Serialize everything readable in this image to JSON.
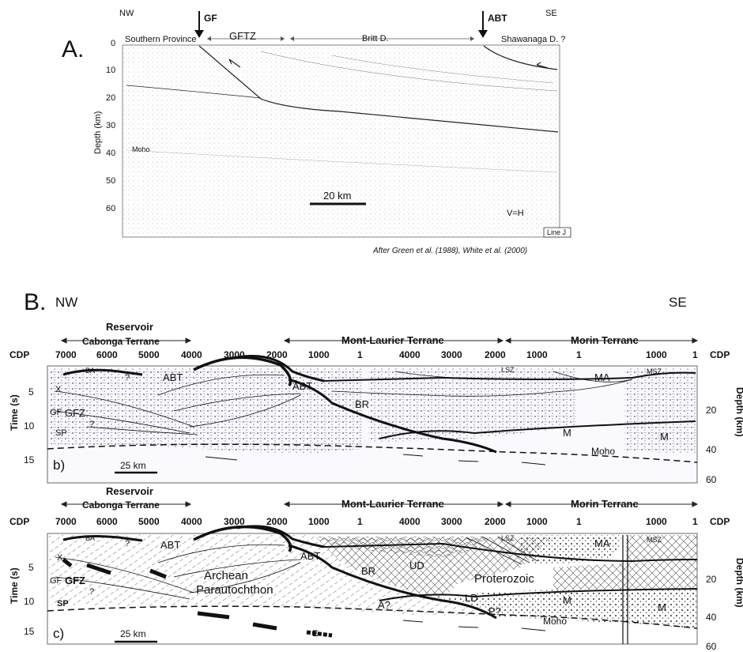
{
  "panel_a": {
    "letter": "A.",
    "nw": "NW",
    "se": "SE",
    "fault_left": "GF",
    "fault_right": "ABT",
    "province_left": "Southern Province",
    "zone": "GFTZ",
    "domain_mid": "Britt D.",
    "domain_right": "Shawanaga D. ?",
    "depth_label": "Depth (km)",
    "depth_ticks": [
      "0",
      "10",
      "20",
      "30",
      "40",
      "50",
      "60"
    ],
    "moho": "Moho",
    "scale": "20 km",
    "ratio": "V=H",
    "line_box": "Line J",
    "credit": "After Green et al. (1988), White et al. (2000)"
  },
  "panel_b": {
    "letter": "B.",
    "nw": "NW",
    "se": "SE",
    "sub": "b)",
    "scale": "25 km",
    "moho": "Moho",
    "labels": {
      "ba": "BA",
      "q1": "?",
      "abt_left": "ABT",
      "abt_mid": "ABT",
      "x": "X",
      "gf": "GF",
      "gfz": "GFZ",
      "q2": "?",
      "sp": "SP",
      "br": "BR",
      "lsz": "LSZ",
      "ma": "MA",
      "msz": "MSZ",
      "m1": "M",
      "m2": "M"
    }
  },
  "panel_c": {
    "sub": "c)",
    "scale": "25 km",
    "moho": "Moho",
    "labels": {
      "ba": "BA",
      "q1": "?",
      "abt_left": "ABT",
      "abt_mid": "ABT",
      "x": "X",
      "gf": "GF",
      "gfz": "GFZ",
      "q2": "?",
      "sp": "SP",
      "archean": "Archean",
      "parautochthon": "Parautochthon",
      "br": "BR",
      "a": "A?",
      "ud": "UD",
      "ld": "LD",
      "proterozoic": "Proterozoic",
      "p": "P?",
      "m1": "M",
      "m2": "M",
      "lsz": "LSZ",
      "ma": "MA",
      "msz": "MSZ",
      "e": "E"
    }
  },
  "section_axes": {
    "cdp": "CDP",
    "cdp_ticks": [
      "7000",
      "6000",
      "5000",
      "4000",
      "3000",
      "2000",
      "1000",
      "1",
      "4000",
      "3000",
      "2000",
      "1000",
      "1",
      "1000",
      "1"
    ],
    "time_label": "Time (s)",
    "time_ticks": [
      "5",
      "10",
      "15"
    ],
    "depth_label": "Depth (km)",
    "depth_ticks": [
      "20",
      "40",
      "60"
    ],
    "terranes": {
      "reservoir": "Reservoir",
      "cabonga": "Cabonga Terrane",
      "mont_laurier": "Mont-Laurier Terrane",
      "morin": "Morin Terrane"
    }
  }
}
